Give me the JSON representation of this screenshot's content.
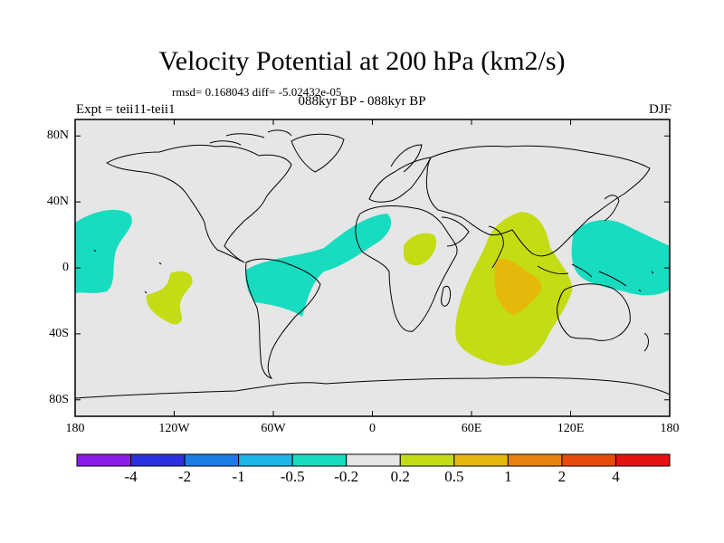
{
  "title": "Velocity Potential at 200 hPa (km2/s)",
  "stats": "rmsd= 0.168043 diff= -5.02432e-05",
  "period": "088kyr BP - 088kyr BP",
  "experiment": "Expt = teii11-teii1",
  "season": "DJF",
  "axes": {
    "x_ticks": [
      {
        "label": "180",
        "lon": -180
      },
      {
        "label": "120W",
        "lon": -120
      },
      {
        "label": "60W",
        "lon": -60
      },
      {
        "label": "0",
        "lon": 0
      },
      {
        "label": "60E",
        "lon": 60
      },
      {
        "label": "120E",
        "lon": 120
      },
      {
        "label": "180",
        "lon": 180
      }
    ],
    "y_ticks": [
      {
        "label": "80N",
        "lat": 80
      },
      {
        "label": "40N",
        "lat": 40
      },
      {
        "label": "0",
        "lat": 0
      },
      {
        "label": "40S",
        "lat": -40
      },
      {
        "label": "80S",
        "lat": -80
      }
    ],
    "lon_range": [
      -180,
      180
    ],
    "lat_range": [
      -90,
      90
    ]
  },
  "colorbar": {
    "colors": [
      "#8a1ee6",
      "#2b2fe0",
      "#1c7de6",
      "#1bb6e6",
      "#17dcc0",
      "#e6e6e6",
      "#c3dc14",
      "#e6b80c",
      "#e6830f",
      "#e64a0c",
      "#e61212"
    ],
    "labels": [
      "-4",
      "-2",
      "-1",
      "-0.5",
      "-0.2",
      "0.2",
      "0.5",
      "1",
      "2",
      "4"
    ]
  },
  "map_colors": {
    "background": "#e6e6e6",
    "negative_weak": "#17dcc0",
    "positive_weak": "#c3dc14",
    "positive_mid": "#e6b80c"
  }
}
